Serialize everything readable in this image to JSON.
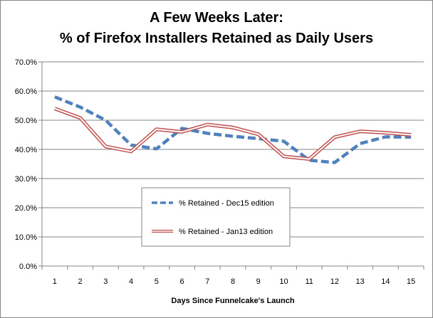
{
  "chart_data": {
    "type": "line",
    "title": "A Few Weeks Later:",
    "subtitle": "% of Firefox Installers Retained as Daily Users",
    "xlabel": "Days Since Funnelcake's Launch",
    "ylabel": "",
    "categories": [
      "1",
      "2",
      "3",
      "4",
      "5",
      "6",
      "7",
      "8",
      "9",
      "10",
      "11",
      "12",
      "13",
      "14",
      "15"
    ],
    "ylim": [
      0,
      70
    ],
    "yticks": [
      "0.0%",
      "10.0%",
      "20.0%",
      "30.0%",
      "40.0%",
      "50.0%",
      "60.0%",
      "70.0%"
    ],
    "grid": true,
    "legend_position": "center",
    "series": [
      {
        "name": "% Retained - Dec15 edition",
        "style": "dashed",
        "color": "#4f81bd",
        "values": [
          58,
          54.5,
          50,
          41.5,
          40.2,
          47.2,
          45.5,
          44.5,
          43.7,
          42.8,
          36.3,
          35.5,
          42,
          44.3,
          44.2
        ]
      },
      {
        "name": "% Retained - Jan13 edition",
        "style": "double",
        "color": "#c0504d",
        "values": [
          54,
          50.8,
          41,
          39.3,
          46.9,
          46,
          48.5,
          47.5,
          45.2,
          37.6,
          36.7,
          44.2,
          46.2,
          45.7,
          45
        ]
      }
    ]
  }
}
